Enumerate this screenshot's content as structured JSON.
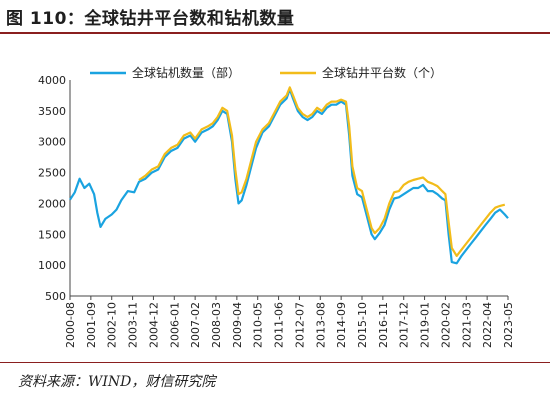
{
  "figure": {
    "title": "图 110：全球钻井平台数和钻机数量",
    "source": "资料来源：WIND，财信研究院"
  },
  "chart_data": {
    "type": "line",
    "ylim": [
      500,
      4000
    ],
    "yticks": [
      500,
      1000,
      1500,
      2000,
      2500,
      3000,
      3500,
      4000
    ],
    "xlim": [
      "2000-08",
      "2023-05"
    ],
    "xticks": [
      "2000-08",
      "2001-09",
      "2002-10",
      "2003-11",
      "2004-12",
      "2006-01",
      "2007-02",
      "2008-03",
      "2009-04",
      "2010-05",
      "2011-06",
      "2012-07",
      "2013-08",
      "2014-09",
      "2015-10",
      "2016-11",
      "2017-12",
      "2019-01",
      "2020-02",
      "2021-03",
      "2022-04",
      "2023-05"
    ],
    "legend_position": "top",
    "grid": false,
    "series": [
      {
        "name": "全球钻机数量（部）",
        "color": "#1aa3e0",
        "points": [
          [
            "2000-08",
            2060
          ],
          [
            "2000-11",
            2180
          ],
          [
            "2001-02",
            2400
          ],
          [
            "2001-05",
            2250
          ],
          [
            "2001-08",
            2320
          ],
          [
            "2001-11",
            2150
          ],
          [
            "2002-01",
            1850
          ],
          [
            "2002-03",
            1620
          ],
          [
            "2002-06",
            1750
          ],
          [
            "2002-10",
            1820
          ],
          [
            "2003-01",
            1900
          ],
          [
            "2003-04",
            2050
          ],
          [
            "2003-08",
            2200
          ],
          [
            "2003-12",
            2180
          ],
          [
            "2004-03",
            2350
          ],
          [
            "2004-07",
            2400
          ],
          [
            "2004-11",
            2500
          ],
          [
            "2005-03",
            2550
          ],
          [
            "2005-07",
            2750
          ],
          [
            "2005-11",
            2850
          ],
          [
            "2006-03",
            2900
          ],
          [
            "2006-07",
            3050
          ],
          [
            "2006-11",
            3100
          ],
          [
            "2007-02",
            3000
          ],
          [
            "2007-06",
            3150
          ],
          [
            "2007-10",
            3200
          ],
          [
            "2008-01",
            3250
          ],
          [
            "2008-04",
            3350
          ],
          [
            "2008-07",
            3500
          ],
          [
            "2008-10",
            3450
          ],
          [
            "2009-01",
            3000
          ],
          [
            "2009-03",
            2400
          ],
          [
            "2009-05",
            2000
          ],
          [
            "2009-07",
            2050
          ],
          [
            "2009-10",
            2300
          ],
          [
            "2010-01",
            2600
          ],
          [
            "2010-04",
            2900
          ],
          [
            "2010-08",
            3150
          ],
          [
            "2010-12",
            3250
          ],
          [
            "2011-03",
            3400
          ],
          [
            "2011-07",
            3600
          ],
          [
            "2011-11",
            3700
          ],
          [
            "2012-01",
            3850
          ],
          [
            "2012-03",
            3700
          ],
          [
            "2012-06",
            3500
          ],
          [
            "2012-09",
            3400
          ],
          [
            "2012-12",
            3350
          ],
          [
            "2013-03",
            3400
          ],
          [
            "2013-06",
            3500
          ],
          [
            "2013-09",
            3450
          ],
          [
            "2013-12",
            3550
          ],
          [
            "2014-03",
            3600
          ],
          [
            "2014-06",
            3600
          ],
          [
            "2014-09",
            3650
          ],
          [
            "2014-12",
            3600
          ],
          [
            "2015-02",
            3100
          ],
          [
            "2015-04",
            2450
          ],
          [
            "2015-07",
            2150
          ],
          [
            "2015-10",
            2100
          ],
          [
            "2016-01",
            1800
          ],
          [
            "2016-04",
            1500
          ],
          [
            "2016-06",
            1420
          ],
          [
            "2016-09",
            1520
          ],
          [
            "2016-12",
            1650
          ],
          [
            "2017-03",
            1900
          ],
          [
            "2017-06",
            2080
          ],
          [
            "2017-09",
            2100
          ],
          [
            "2017-12",
            2150
          ],
          [
            "2018-03",
            2200
          ],
          [
            "2018-06",
            2250
          ],
          [
            "2018-09",
            2250
          ],
          [
            "2018-12",
            2300
          ],
          [
            "2019-03",
            2200
          ],
          [
            "2019-06",
            2200
          ],
          [
            "2019-09",
            2150
          ],
          [
            "2019-12",
            2080
          ],
          [
            "2020-02",
            2050
          ],
          [
            "2020-04",
            1500
          ],
          [
            "2020-06",
            1050
          ],
          [
            "2020-09",
            1030
          ],
          [
            "2020-12",
            1150
          ],
          [
            "2021-03",
            1250
          ],
          [
            "2021-06",
            1350
          ],
          [
            "2021-09",
            1450
          ],
          [
            "2021-12",
            1550
          ],
          [
            "2022-03",
            1650
          ],
          [
            "2022-06",
            1750
          ],
          [
            "2022-09",
            1850
          ],
          [
            "2022-12",
            1900
          ],
          [
            "2023-03",
            1820
          ],
          [
            "2023-05",
            1760
          ]
        ]
      },
      {
        "name": "全球钻井平台数（个）",
        "color": "#f2bc1a",
        "points": [
          [
            "2004-03",
            2380
          ],
          [
            "2004-07",
            2450
          ],
          [
            "2004-11",
            2550
          ],
          [
            "2005-03",
            2600
          ],
          [
            "2005-07",
            2800
          ],
          [
            "2005-11",
            2900
          ],
          [
            "2006-03",
            2950
          ],
          [
            "2006-07",
            3100
          ],
          [
            "2006-11",
            3150
          ],
          [
            "2007-02",
            3050
          ],
          [
            "2007-06",
            3200
          ],
          [
            "2007-10",
            3250
          ],
          [
            "2008-01",
            3300
          ],
          [
            "2008-04",
            3400
          ],
          [
            "2008-07",
            3550
          ],
          [
            "2008-10",
            3500
          ],
          [
            "2009-01",
            3100
          ],
          [
            "2009-03",
            2550
          ],
          [
            "2009-05",
            2150
          ],
          [
            "2009-07",
            2180
          ],
          [
            "2009-10",
            2400
          ],
          [
            "2010-01",
            2700
          ],
          [
            "2010-04",
            3000
          ],
          [
            "2010-08",
            3200
          ],
          [
            "2010-12",
            3300
          ],
          [
            "2011-03",
            3450
          ],
          [
            "2011-07",
            3650
          ],
          [
            "2011-11",
            3750
          ],
          [
            "2012-01",
            3880
          ],
          [
            "2012-03",
            3750
          ],
          [
            "2012-06",
            3550
          ],
          [
            "2012-09",
            3450
          ],
          [
            "2012-12",
            3400
          ],
          [
            "2013-03",
            3450
          ],
          [
            "2013-06",
            3550
          ],
          [
            "2013-09",
            3500
          ],
          [
            "2013-12",
            3600
          ],
          [
            "2014-03",
            3650
          ],
          [
            "2014-06",
            3650
          ],
          [
            "2014-09",
            3680
          ],
          [
            "2014-12",
            3650
          ],
          [
            "2015-02",
            3250
          ],
          [
            "2015-04",
            2600
          ],
          [
            "2015-07",
            2250
          ],
          [
            "2015-10",
            2200
          ],
          [
            "2016-01",
            1900
          ],
          [
            "2016-04",
            1600
          ],
          [
            "2016-06",
            1520
          ],
          [
            "2016-09",
            1600
          ],
          [
            "2016-12",
            1750
          ],
          [
            "2017-03",
            2000
          ],
          [
            "2017-06",
            2180
          ],
          [
            "2017-09",
            2200
          ],
          [
            "2017-12",
            2300
          ],
          [
            "2018-03",
            2350
          ],
          [
            "2018-06",
            2380
          ],
          [
            "2018-09",
            2400
          ],
          [
            "2018-12",
            2420
          ],
          [
            "2019-03",
            2350
          ],
          [
            "2019-06",
            2320
          ],
          [
            "2019-09",
            2280
          ],
          [
            "2019-12",
            2200
          ],
          [
            "2020-02",
            2150
          ],
          [
            "2020-04",
            1700
          ],
          [
            "2020-06",
            1280
          ],
          [
            "2020-09",
            1150
          ],
          [
            "2020-12",
            1250
          ],
          [
            "2021-03",
            1350
          ],
          [
            "2021-06",
            1450
          ],
          [
            "2021-09",
            1550
          ],
          [
            "2021-12",
            1650
          ],
          [
            "2022-03",
            1750
          ],
          [
            "2022-06",
            1850
          ],
          [
            "2022-09",
            1930
          ],
          [
            "2022-12",
            1960
          ],
          [
            "2023-03",
            1980
          ]
        ]
      }
    ]
  }
}
